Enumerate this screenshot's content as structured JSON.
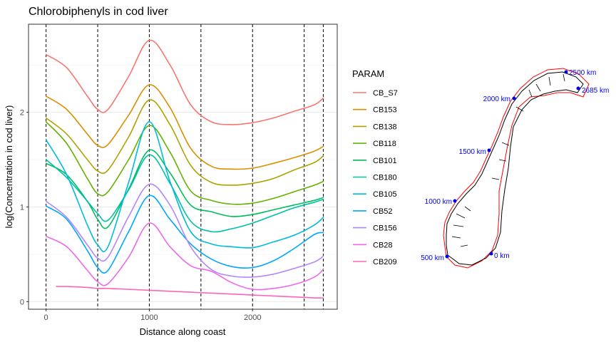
{
  "chart_data": {
    "type": "line",
    "title": "Chlorobiphenyls in cod liver",
    "xlabel": "Distance along coast",
    "ylabel": "log(Concentration in cod liver)",
    "xlim": [
      -170,
      2820
    ],
    "ylim": [
      -0.08,
      2.93
    ],
    "x_ticks": [
      0,
      1000,
      2000
    ],
    "y_ticks": [
      0,
      1,
      2
    ],
    "grid": true,
    "legend_title": "PARAM",
    "legend_position": "right",
    "vlines": [
      0,
      500,
      1000,
      1500,
      2000,
      2500,
      2685
    ],
    "x": [
      0,
      200,
      400,
      500,
      600,
      800,
      1000,
      1200,
      1400,
      1600,
      1800,
      2000,
      2200,
      2400,
      2600,
      2685
    ],
    "series": [
      {
        "name": "CB_S7",
        "color": "#F8766D",
        "values": [
          2.61,
          2.47,
          2.17,
          2.03,
          2.03,
          2.38,
          2.76,
          2.5,
          2.08,
          1.9,
          1.87,
          1.89,
          1.94,
          2.01,
          2.08,
          2.15
        ]
      },
      {
        "name": "CB153",
        "color": "#DB8E00",
        "values": [
          2.17,
          2.03,
          1.77,
          1.65,
          1.66,
          1.97,
          2.29,
          2.05,
          1.62,
          1.43,
          1.4,
          1.41,
          1.46,
          1.52,
          1.59,
          1.64
        ]
      },
      {
        "name": "CB138",
        "color": "#AEA200",
        "values": [
          1.94,
          1.77,
          1.5,
          1.38,
          1.39,
          1.74,
          2.13,
          1.87,
          1.44,
          1.26,
          1.23,
          1.25,
          1.3,
          1.39,
          1.47,
          1.54
        ]
      },
      {
        "name": "CB118",
        "color": "#64B200",
        "values": [
          1.9,
          1.67,
          1.3,
          1.14,
          1.16,
          1.5,
          1.86,
          1.58,
          1.17,
          1.07,
          1.03,
          1.04,
          1.09,
          1.16,
          1.23,
          1.27
        ]
      },
      {
        "name": "CB101",
        "color": "#00BD5C",
        "values": [
          1.46,
          1.34,
          1.06,
          0.87,
          0.79,
          1.19,
          1.6,
          1.36,
          1.02,
          0.95,
          0.9,
          0.92,
          0.97,
          1.02,
          1.07,
          1.1
        ]
      },
      {
        "name": "CB180",
        "color": "#00C1A7",
        "values": [
          1.5,
          1.31,
          1.06,
          0.93,
          0.86,
          1.18,
          1.55,
          1.25,
          0.85,
          0.74,
          0.77,
          0.83,
          0.91,
          0.99,
          1.05,
          1.08
        ]
      },
      {
        "name": "CB105",
        "color": "#00BADE",
        "values": [
          1.71,
          1.34,
          0.81,
          0.6,
          0.58,
          1.26,
          1.9,
          1.27,
          0.74,
          0.61,
          0.58,
          0.57,
          0.63,
          0.7,
          0.81,
          0.89
        ]
      },
      {
        "name": "CB52",
        "color": "#00A6FF",
        "values": [
          1.01,
          0.87,
          0.54,
          0.36,
          0.33,
          0.74,
          1.12,
          0.87,
          0.61,
          0.45,
          0.37,
          0.36,
          0.43,
          0.56,
          0.71,
          0.73
        ]
      },
      {
        "name": "CB156",
        "color": "#B385FF",
        "values": [
          1.06,
          0.89,
          0.6,
          0.46,
          0.47,
          0.9,
          1.24,
          1.02,
          0.58,
          0.34,
          0.27,
          0.26,
          0.29,
          0.35,
          0.42,
          0.48
        ]
      },
      {
        "name": "CB28",
        "color": "#EF67EB",
        "values": [
          0.69,
          0.58,
          0.33,
          0.21,
          0.19,
          0.47,
          0.83,
          0.58,
          0.38,
          0.32,
          0.2,
          0.13,
          0.14,
          0.18,
          0.26,
          0.34
        ]
      },
      {
        "name": "CB209",
        "color": "#FF63B6",
        "values": [
          null,
          0.16,
          0.15,
          0.14,
          0.14,
          0.13,
          0.12,
          0.11,
          0.1,
          0.09,
          0.08,
          0.07,
          0.06,
          0.05,
          0.04,
          0.04
        ]
      }
    ]
  },
  "map": {
    "labels": [
      "2500 km",
      "2685 km",
      "2000 km",
      "1500 km",
      "1000 km",
      "500 km",
      "0 km"
    ],
    "point_color": "#0000ee",
    "buffer_color": "#ff0000",
    "land_color": "#000000"
  }
}
